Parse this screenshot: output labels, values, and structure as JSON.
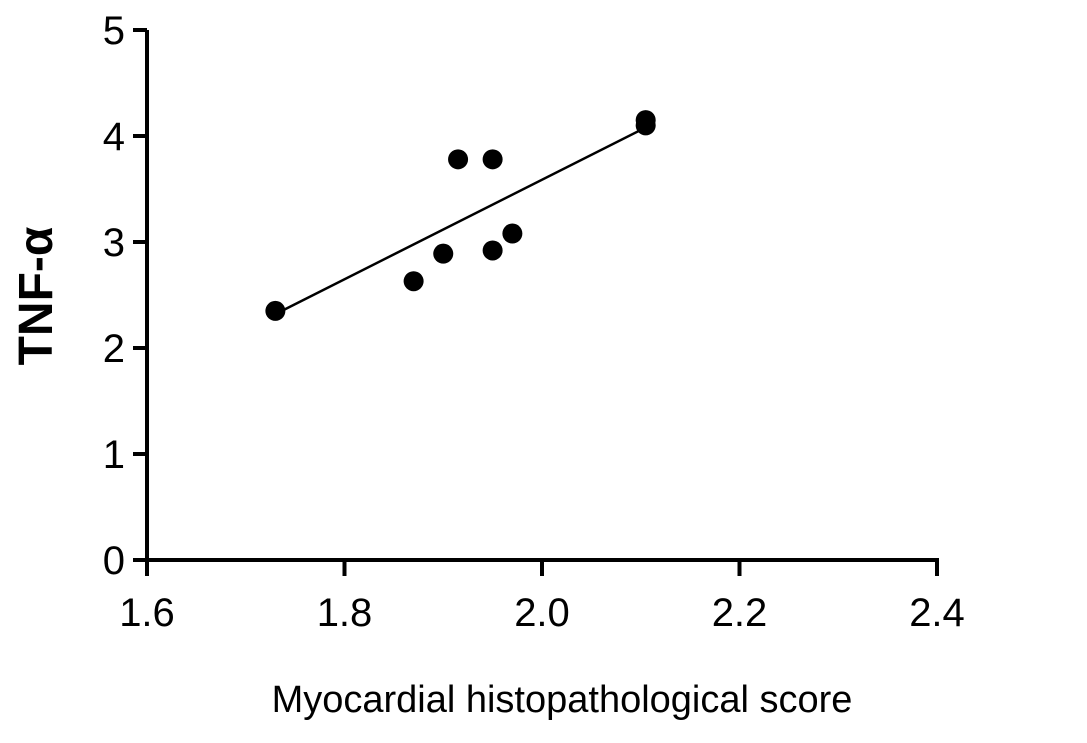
{
  "chart_data": {
    "type": "scatter",
    "title": "",
    "xlabel": "Myocardial histopathological score",
    "ylabel": "TNF-α",
    "xlim": [
      1.6,
      2.4
    ],
    "ylim": [
      0,
      5
    ],
    "xticks": [
      "1.6",
      "1.8",
      "2.0",
      "2.2",
      "2.4"
    ],
    "yticks": [
      "0",
      "1",
      "2",
      "3",
      "4",
      "5"
    ],
    "grid": false,
    "legend": "none",
    "points": [
      {
        "x": 1.73,
        "y": 2.35
      },
      {
        "x": 1.87,
        "y": 2.63
      },
      {
        "x": 1.9,
        "y": 2.89
      },
      {
        "x": 1.915,
        "y": 3.78
      },
      {
        "x": 1.95,
        "y": 3.78
      },
      {
        "x": 1.95,
        "y": 2.92
      },
      {
        "x": 1.97,
        "y": 3.08
      },
      {
        "x": 2.105,
        "y": 4.15
      },
      {
        "x": 2.105,
        "y": 4.1
      }
    ],
    "fit_line": {
      "x": [
        1.73,
        2.105
      ],
      "y": [
        2.32,
        4.08
      ]
    }
  }
}
